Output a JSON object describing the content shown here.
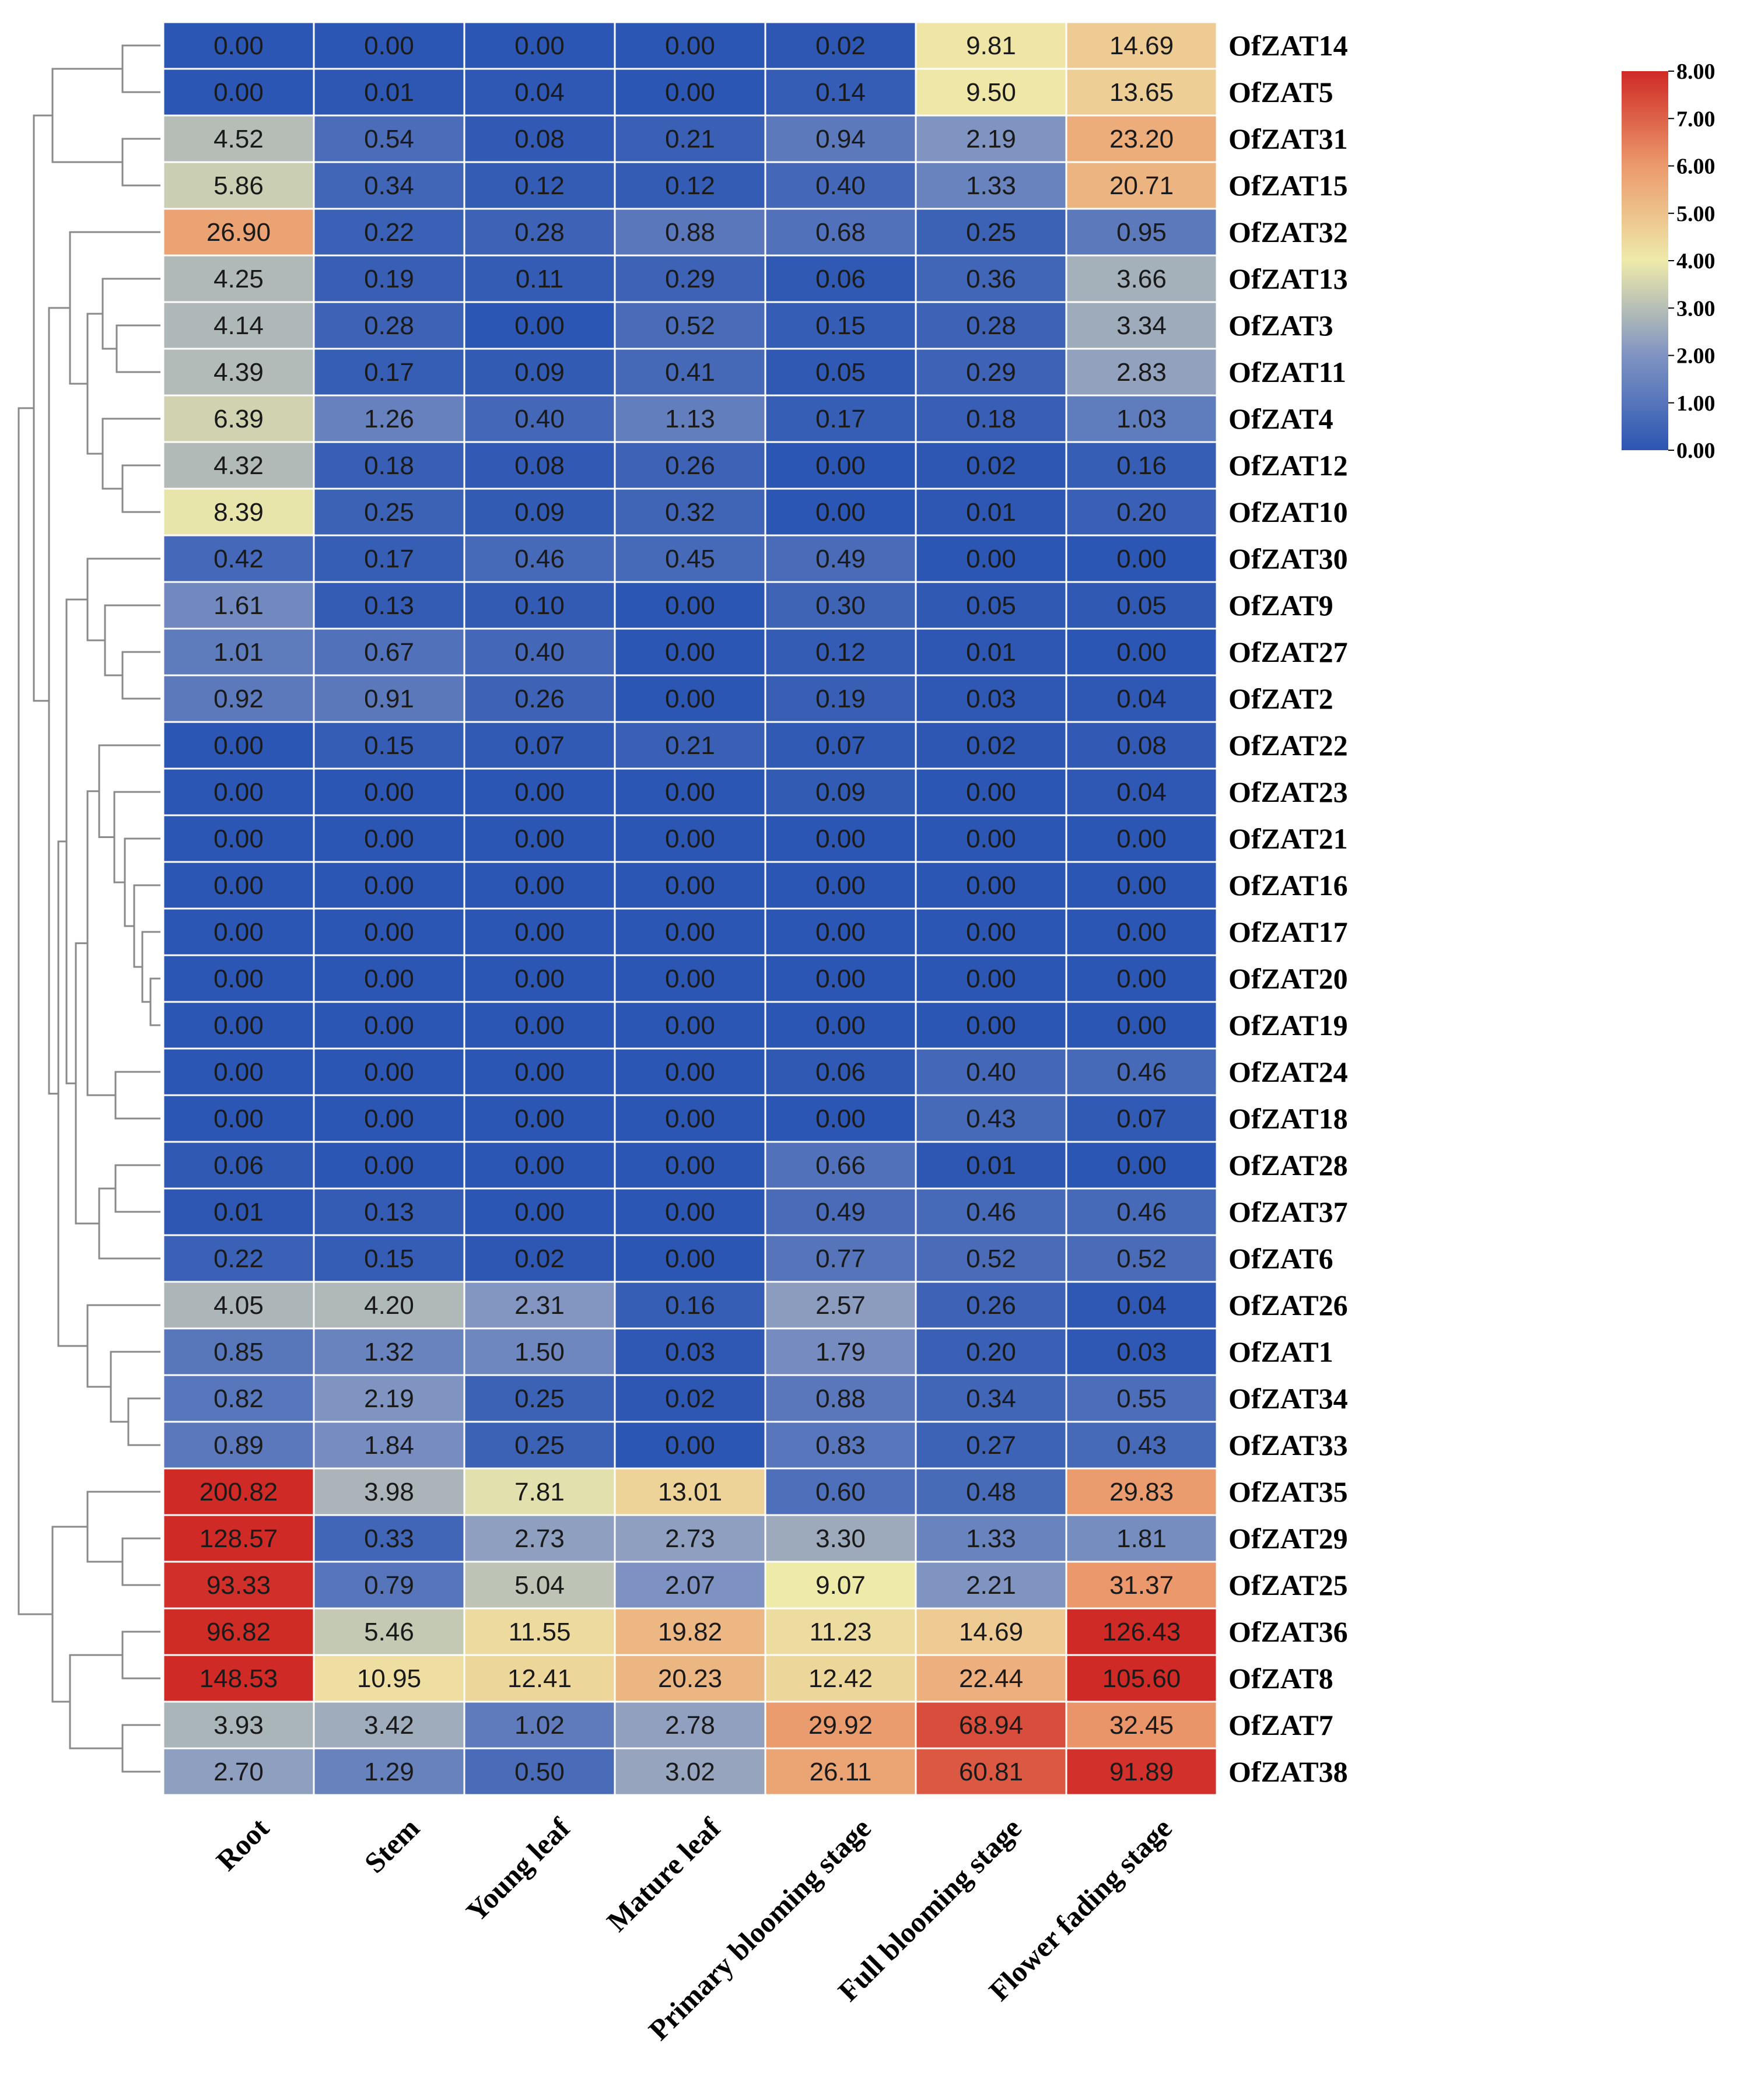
{
  "chart_data": {
    "type": "heatmap",
    "title": "",
    "columns": [
      "Root",
      "Stem",
      "Young leaf",
      "Mature leaf",
      "Primary blooming stage",
      "Full blooming stage",
      "Flower fading stage"
    ],
    "rows": [
      {
        "gene": "OfZAT14",
        "labels": [
          "0.00",
          "0.00",
          "0.00",
          "0.00",
          "0.02",
          "9.81",
          "14.69"
        ]
      },
      {
        "gene": "OfZAT5",
        "labels": [
          "0.00",
          "0.01",
          "0.04",
          "0.00",
          "0.14",
          "9.50",
          "13.65"
        ]
      },
      {
        "gene": "OfZAT31",
        "labels": [
          "4.52",
          "0.54",
          "0.08",
          "0.21",
          "0.94",
          "2.19",
          "23.20"
        ]
      },
      {
        "gene": "OfZAT15",
        "labels": [
          "5.86",
          "0.34",
          "0.12",
          "0.12",
          "0.40",
          "1.33",
          "20.71"
        ]
      },
      {
        "gene": "OfZAT32",
        "labels": [
          "26.90",
          "0.22",
          "0.28",
          "0.88",
          "0.68",
          "0.25",
          "0.95"
        ]
      },
      {
        "gene": "OfZAT13",
        "labels": [
          "4.25",
          "0.19",
          "0.11",
          "0.29",
          "0.06",
          "0.36",
          "3.66"
        ]
      },
      {
        "gene": "OfZAT3",
        "labels": [
          "4.14",
          "0.28",
          "0.00",
          "0.52",
          "0.15",
          "0.28",
          "3.34"
        ]
      },
      {
        "gene": "OfZAT11",
        "labels": [
          "4.39",
          "0.17",
          "0.09",
          "0.41",
          "0.05",
          "0.29",
          "2.83"
        ]
      },
      {
        "gene": "OfZAT4",
        "labels": [
          "6.39",
          "1.26",
          "0.40",
          "1.13",
          "0.17",
          "0.18",
          "1.03"
        ]
      },
      {
        "gene": "OfZAT12",
        "labels": [
          "4.32",
          "0.18",
          "0.08",
          "0.26",
          "0.00",
          "0.02",
          "0.16"
        ]
      },
      {
        "gene": "OfZAT10",
        "labels": [
          "8.39",
          "0.25",
          "0.09",
          "0.32",
          "0.00",
          "0.01",
          "0.20"
        ]
      },
      {
        "gene": "OfZAT30",
        "labels": [
          "0.42",
          "0.17",
          "0.46",
          "0.45",
          "0.49",
          "0.00",
          "0.00"
        ]
      },
      {
        "gene": "OfZAT9",
        "labels": [
          "1.61",
          "0.13",
          "0.10",
          "0.00",
          "0.30",
          "0.05",
          "0.05"
        ]
      },
      {
        "gene": "OfZAT27",
        "labels": [
          "1.01",
          "0.67",
          "0.40",
          "0.00",
          "0.12",
          "0.01",
          "0.00"
        ]
      },
      {
        "gene": "OfZAT2",
        "labels": [
          "0.92",
          "0.91",
          "0.26",
          "0.00",
          "0.19",
          "0.03",
          "0.04"
        ]
      },
      {
        "gene": "OfZAT22",
        "labels": [
          "0.00",
          "0.15",
          "0.07",
          "0.21",
          "0.07",
          "0.02",
          "0.08"
        ]
      },
      {
        "gene": "OfZAT23",
        "labels": [
          "0.00",
          "0.00",
          "0.00",
          "0.00",
          "0.09",
          "0.00",
          "0.04"
        ]
      },
      {
        "gene": "OfZAT21",
        "labels": [
          "0.00",
          "0.00",
          "0.00",
          "0.00",
          "0.00",
          "0.00",
          "0.00"
        ]
      },
      {
        "gene": "OfZAT16",
        "labels": [
          "0.00",
          "0.00",
          "0.00",
          "0.00",
          "0.00",
          "0.00",
          "0.00"
        ]
      },
      {
        "gene": "OfZAT17",
        "labels": [
          "0.00",
          "0.00",
          "0.00",
          "0.00",
          "0.00",
          "0.00",
          "0.00"
        ]
      },
      {
        "gene": "OfZAT20",
        "labels": [
          "0.00",
          "0.00",
          "0.00",
          "0.00",
          "0.00",
          "0.00",
          "0.00"
        ]
      },
      {
        "gene": "OfZAT19",
        "labels": [
          "0.00",
          "0.00",
          "0.00",
          "0.00",
          "0.00",
          "0.00",
          "0.00"
        ]
      },
      {
        "gene": "OfZAT24",
        "labels": [
          "0.00",
          "0.00",
          "0.00",
          "0.00",
          "0.06",
          "0.40",
          "0.46"
        ]
      },
      {
        "gene": "OfZAT18",
        "labels": [
          "0.00",
          "0.00",
          "0.00",
          "0.00",
          "0.00",
          "0.43",
          "0.07"
        ]
      },
      {
        "gene": "OfZAT28",
        "labels": [
          "0.06",
          "0.00",
          "0.00",
          "0.00",
          "0.66",
          "0.01",
          "0.00"
        ]
      },
      {
        "gene": "OfZAT37",
        "labels": [
          "0.01",
          "0.13",
          "0.00",
          "0.00",
          "0.49",
          "0.46",
          "0.46"
        ]
      },
      {
        "gene": "OfZAT6",
        "labels": [
          "0.22",
          "0.15",
          "0.02",
          "0.00",
          "0.77",
          "0.52",
          "0.52"
        ]
      },
      {
        "gene": "OfZAT26",
        "labels": [
          "4.05",
          "4.20",
          "2.31",
          "0.16",
          "2.57",
          "0.26",
          "0.04"
        ]
      },
      {
        "gene": "OfZAT1",
        "labels": [
          "0.85",
          "1.32",
          "1.50",
          "0.03",
          "1.79",
          "0.20",
          "0.03"
        ]
      },
      {
        "gene": "OfZAT34",
        "labels": [
          "0.82",
          "2.19",
          "0.25",
          "0.02",
          "0.88",
          "0.34",
          "0.55"
        ]
      },
      {
        "gene": "OfZAT33",
        "labels": [
          "0.89",
          "1.84",
          "0.25",
          "0.00",
          "0.83",
          "0.27",
          "0.43"
        ]
      },
      {
        "gene": "OfZAT35",
        "labels": [
          "200.82",
          "3.98",
          "7.81",
          "13.01",
          "0.60",
          "0.48",
          "29.83"
        ]
      },
      {
        "gene": "OfZAT29",
        "labels": [
          "128.57",
          "0.33",
          "2.73",
          "2.73",
          "3.30",
          "1.33",
          "1.81"
        ]
      },
      {
        "gene": "OfZAT25",
        "labels": [
          "93.33",
          "0.79",
          "5.04",
          "2.07",
          "9.07",
          "2.21",
          "31.37"
        ]
      },
      {
        "gene": "OfZAT36",
        "labels": [
          "96.82",
          "5.46",
          "11.55",
          "19.82",
          "11.23",
          "14.69",
          "126.43"
        ]
      },
      {
        "gene": "OfZAT8",
        "labels": [
          "148.53",
          "10.95",
          "12.41",
          "20.23",
          "12.42",
          "22.44",
          "105.60"
        ]
      },
      {
        "gene": "OfZAT7",
        "labels": [
          "3.93",
          "3.42",
          "1.02",
          "2.78",
          "29.92",
          "68.94",
          "32.45"
        ]
      },
      {
        "gene": "OfZAT38",
        "labels": [
          "2.70",
          "1.29",
          "0.50",
          "3.02",
          "26.11",
          "60.81",
          "91.89"
        ]
      }
    ],
    "color_scale": {
      "min": 0,
      "max": 8,
      "colors": [
        "#2c56b3",
        "#eeeaaa",
        "#cf2a25"
      ],
      "legend_ticks": [
        "8.00",
        "7.00",
        "6.00",
        "5.00",
        "4.00",
        "3.00",
        "2.00",
        "1.00",
        "0.00"
      ],
      "legend_placement": "top-right"
    },
    "dendrogram": "row clustering tree on left side"
  }
}
